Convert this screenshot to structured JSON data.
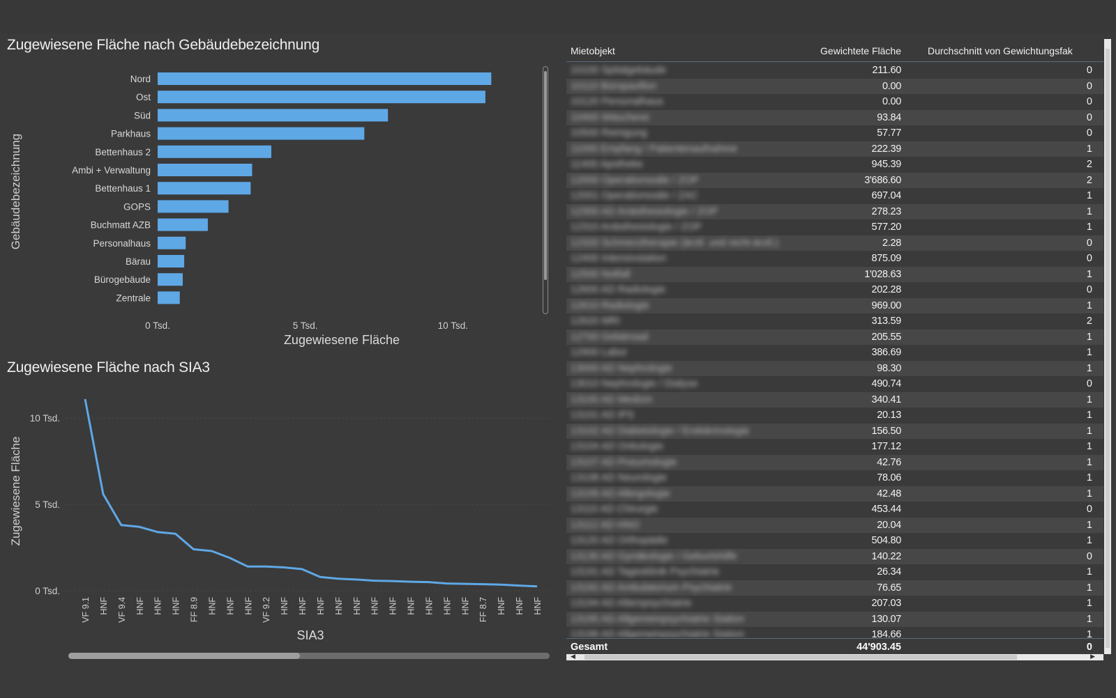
{
  "bar_chart": {
    "title": "Zugewiesene Fläche nach Gebäudebezeichnung",
    "y_label": "Gebäudebezeichnung",
    "x_label": "Zugewiesene Fläche",
    "bar_color": "#5fa8e6",
    "chart_data": {
      "type": "bar",
      "orientation": "horizontal",
      "title": "Zugewiesene Fläche nach Gebäudebezeichnung",
      "xlabel": "Zugewiesene Fläche",
      "ylabel": "Gebäudebezeichnung",
      "categories": [
        "Nord",
        "Ost",
        "Süd",
        "Parkhaus",
        "Bettenhaus 2",
        "Ambi + Verwaltung",
        "Bettenhaus 1",
        "GOPS",
        "Buchmatt AZB",
        "Personalhaus",
        "Bärau",
        "Bürogebäude",
        "Zentrale"
      ],
      "values": [
        11300,
        11100,
        7800,
        7000,
        3850,
        3200,
        3150,
        2400,
        1700,
        950,
        900,
        850,
        750
      ],
      "xlim": [
        0,
        12000
      ],
      "x_ticks": [
        "0 Tsd.",
        "5 Tsd.",
        "10 Tsd."
      ],
      "x_tick_values": [
        0,
        5000,
        10000
      ]
    }
  },
  "line_chart": {
    "title": "Zugewiesene Fläche nach SIA3",
    "y_label": "Zugewiesene Fläche",
    "x_label": "SIA3",
    "line_color": "#5fa8e6",
    "chart_data": {
      "type": "line",
      "title": "Zugewiesene Fläche nach SIA3",
      "xlabel": "SIA3",
      "ylabel": "Zugewiesene Fläche",
      "categories": [
        "VF 9.1",
        "HNF",
        "VF 9.4",
        "HNF",
        "HNF",
        "HNF",
        "FF 8.9",
        "HNF",
        "HNF",
        "HNF",
        "VF 9.2",
        "HNF",
        "HNF",
        "HNF",
        "HNF",
        "HNF",
        "HNF",
        "HNF",
        "HNF",
        "HNF",
        "HNF",
        "HNF",
        "FF 8.7",
        "HNF",
        "HNF",
        "HNF"
      ],
      "values": [
        11100,
        5600,
        3800,
        3700,
        3400,
        3300,
        2400,
        2300,
        1900,
        1400,
        1400,
        1350,
        1250,
        800,
        700,
        650,
        580,
        560,
        520,
        500,
        420,
        400,
        380,
        350,
        300,
        250
      ],
      "ylim": [
        0,
        11500
      ],
      "y_ticks": [
        "0 Tsd.",
        "5 Tsd.",
        "10 Tsd."
      ],
      "y_tick_values": [
        0,
        5000,
        10000
      ]
    }
  },
  "table": {
    "headers": [
      "Mietobjekt",
      "Gewichtete Fläche",
      "Durchschnitt von Gewichtungsfak"
    ],
    "rows": [
      {
        "name": "10100 Spitalgebäude",
        "area": "211.60",
        "factor": "0"
      },
      {
        "name": "10110 Büropavillon",
        "area": "0.00",
        "factor": "0"
      },
      {
        "name": "10120 Personalhaus",
        "area": "0.00",
        "factor": "0"
      },
      {
        "name": "10400 Wäscherei",
        "area": "93.84",
        "factor": "0"
      },
      {
        "name": "10500 Reinigung",
        "area": "57.77",
        "factor": "0"
      },
      {
        "name": "11000 Empfang / Patientenaufnahme",
        "area": "222.39",
        "factor": "1"
      },
      {
        "name": "11400 Apotheke",
        "area": "945.39",
        "factor": "2"
      },
      {
        "name": "12000 Operationssäle / ZOP",
        "area": "3'686.60",
        "factor": "2"
      },
      {
        "name": "12001 Operationssäle / ZAC",
        "area": "697.04",
        "factor": "1"
      },
      {
        "name": "12300 AD Anästhesiologie / ZOP",
        "area": "278.23",
        "factor": "1"
      },
      {
        "name": "12310 Anästhesiologie / ZOP",
        "area": "577.20",
        "factor": "1"
      },
      {
        "name": "12320 Schmerztherapie (ärztl. und nicht-ärztl.)",
        "area": "2.28",
        "factor": "0"
      },
      {
        "name": "12400 Intensivstation",
        "area": "875.09",
        "factor": "0"
      },
      {
        "name": "12500 Notfall",
        "area": "1'028.63",
        "factor": "1"
      },
      {
        "name": "12600 AD Radiologie",
        "area": "202.28",
        "factor": "0"
      },
      {
        "name": "12610 Radiologie",
        "area": "969.00",
        "factor": "1"
      },
      {
        "name": "12620 MRI",
        "area": "313.59",
        "factor": "2"
      },
      {
        "name": "12700 Gebärsaal",
        "area": "205.55",
        "factor": "1"
      },
      {
        "name": "12900 Labor",
        "area": "386.69",
        "factor": "1"
      },
      {
        "name": "13000 AD Nephrologie",
        "area": "98.30",
        "factor": "1"
      },
      {
        "name": "13010 Nephrologie / Dialyse",
        "area": "490.74",
        "factor": "0"
      },
      {
        "name": "13100 AD Medizin",
        "area": "340.41",
        "factor": "1"
      },
      {
        "name": "13101 AD IPS",
        "area": "20.13",
        "factor": "1"
      },
      {
        "name": "13102 AD Diabetologie / Endokrinologie",
        "area": "156.50",
        "factor": "1"
      },
      {
        "name": "13104 AD Onkologie",
        "area": "177.12",
        "factor": "1"
      },
      {
        "name": "13107 AD Pneumologie",
        "area": "42.76",
        "factor": "1"
      },
      {
        "name": "13108 AD Neurologie",
        "area": "78.06",
        "factor": "1"
      },
      {
        "name": "13109 AD Allergologie",
        "area": "42.48",
        "factor": "1"
      },
      {
        "name": "13110 AD Chirurgie",
        "area": "453.44",
        "factor": "0"
      },
      {
        "name": "13112 AD HNO",
        "area": "20.04",
        "factor": "1"
      },
      {
        "name": "13120 AD Orthopädie",
        "area": "504.80",
        "factor": "1"
      },
      {
        "name": "13130 AD Gynäkologie / Geburtshilfe",
        "area": "140.22",
        "factor": "0"
      },
      {
        "name": "13191 AD Tagesklinik Psychiatrie",
        "area": "26.34",
        "factor": "1"
      },
      {
        "name": "13192 AD Ambulatorium Psychiatrie",
        "area": "76.65",
        "factor": "1"
      },
      {
        "name": "13194 AD Alterspsychiatrie",
        "area": "207.03",
        "factor": "1"
      },
      {
        "name": "13195 AD Allgemeinpsychiatrie Station",
        "area": "130.07",
        "factor": "1"
      },
      {
        "name": "13196 AD Allgemeinpsychiatrie Station",
        "area": "184.66",
        "factor": "1"
      }
    ],
    "total": {
      "label": "Gesamt",
      "area": "44'903.45",
      "factor": "0"
    }
  },
  "colors": {
    "background": "#3a3a3a",
    "accent": "#5fa8e6",
    "row_alt": "#474747"
  }
}
